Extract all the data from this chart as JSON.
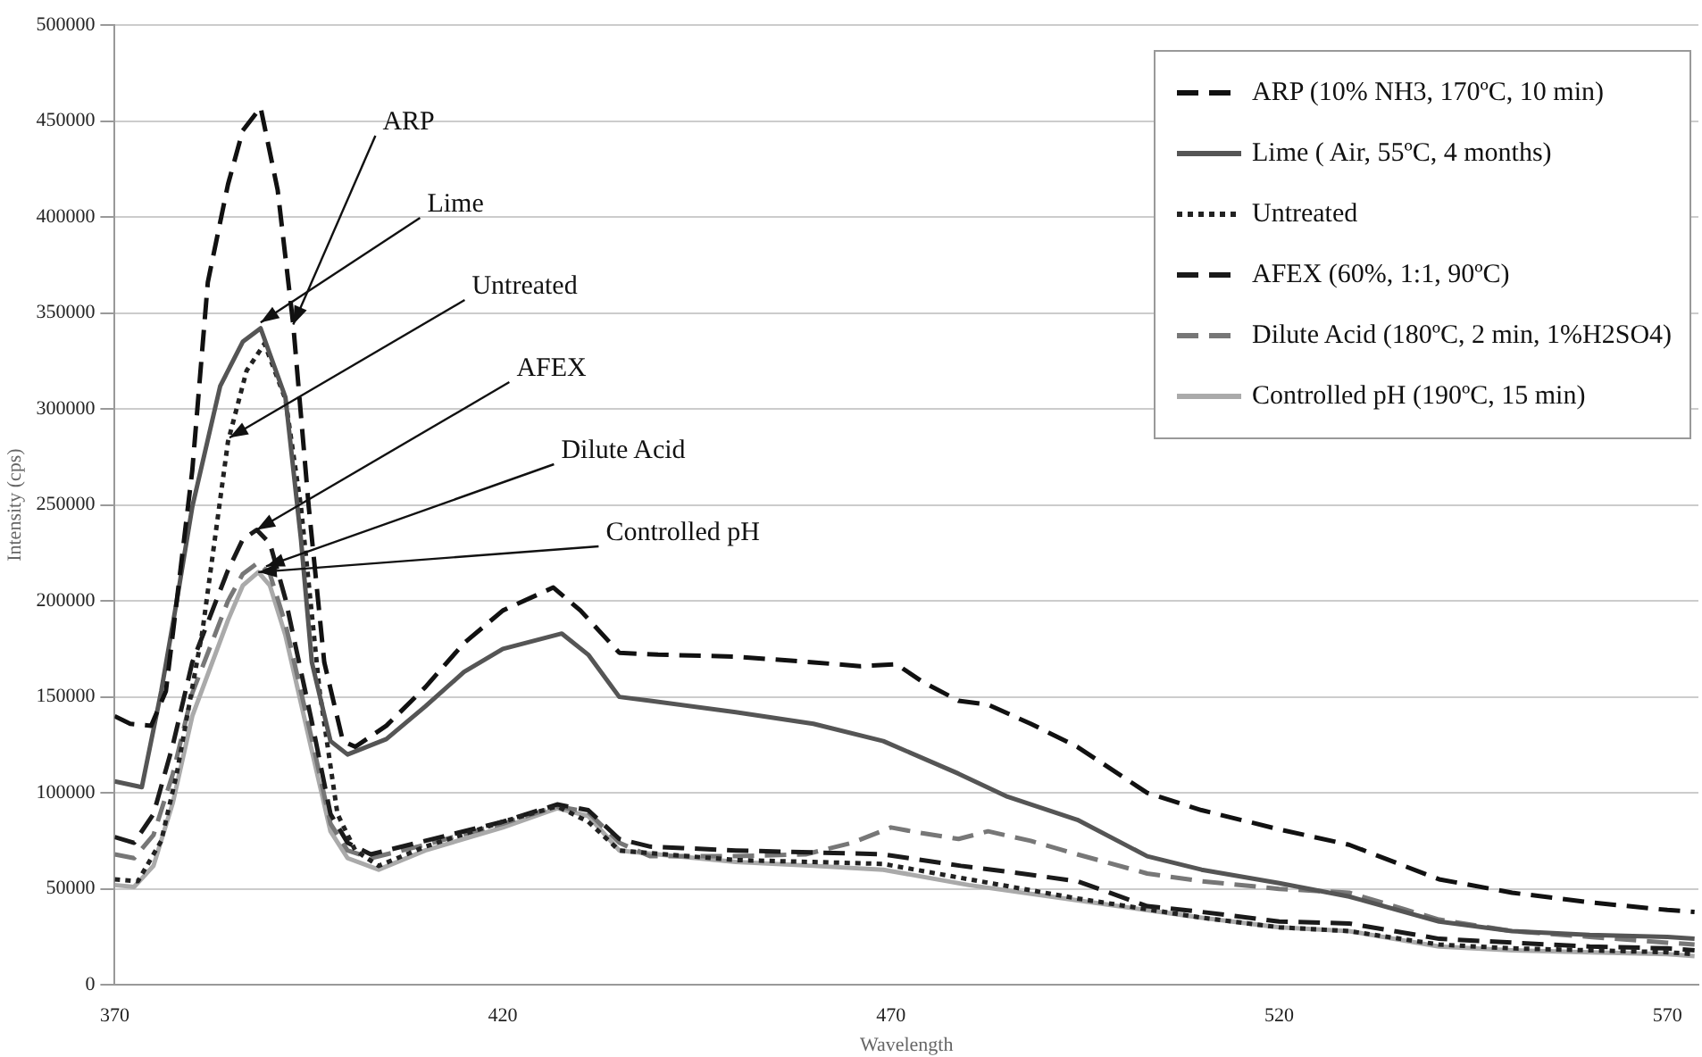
{
  "chart_data": {
    "type": "line",
    "xlabel": "Wavelength",
    "ylabel": "Intensity (cps)",
    "xlim": [
      370,
      574
    ],
    "xticks": [
      370,
      420,
      470,
      520,
      570
    ],
    "ylim": [
      0,
      500000
    ],
    "yticks": [
      0,
      50000,
      100000,
      150000,
      200000,
      250000,
      300000,
      350000,
      400000,
      450000,
      500000
    ],
    "grid": "y",
    "legend": "top right",
    "marker": "none",
    "series": [
      {
        "name": "ARP (10% NH3, 170ºC, 10 min)",
        "color": "#111111",
        "line_style": "dashed",
        "x": [
          370,
          372,
          374.7,
          376.6,
          378,
          380,
          382,
          384.6,
          386.5,
          388.8,
          391,
          393,
          395,
          397,
          399.4,
          401,
          405,
          410,
          415,
          420,
          426.5,
          430,
          435,
          440,
          450,
          460,
          466,
          470.7,
          474,
          478.7,
          482.5,
          488,
          494,
          503,
          510,
          520,
          529,
          540.6,
          550,
          560,
          570,
          573.5
        ],
        "values": [
          140000,
          136000,
          135000,
          153000,
          200000,
          268000,
          366000,
          417000,
          445000,
          457000,
          414000,
          344000,
          249000,
          168000,
          127000,
          124000,
          135000,
          155000,
          178000,
          195000,
          207000,
          195000,
          173000,
          172000,
          171000,
          168000,
          166000,
          167000,
          158000,
          148000,
          146000,
          136000,
          124000,
          100000,
          91000,
          81000,
          73000,
          55000,
          48000,
          43000,
          39000,
          38000
        ]
      },
      {
        "name": "Lime ( Air, 55ºC, 4 months)",
        "color": "#555555",
        "line_style": "solid",
        "x": [
          370,
          373.5,
          376,
          378,
          380,
          383.6,
          386.5,
          388.8,
          392,
          394,
          395.4,
          397.8,
          400,
          405,
          410,
          415,
          420,
          427.6,
          431,
          435,
          439,
          450,
          460,
          469,
          478.7,
          485,
          494,
          503,
          510,
          520,
          529,
          540.6,
          550,
          560,
          570,
          573.5
        ],
        "values": [
          106000,
          103000,
          153000,
          200000,
          249000,
          312000,
          335000,
          342000,
          306000,
          232000,
          168000,
          127000,
          120000,
          128000,
          145000,
          163000,
          175000,
          183000,
          172000,
          150000,
          148000,
          142000,
          136000,
          127000,
          110000,
          98000,
          86000,
          67000,
          60000,
          53000,
          46000,
          33000,
          28000,
          26000,
          25000,
          24000
        ]
      },
      {
        "name": "Untreated",
        "color": "#222222",
        "line_style": "dotted",
        "x": [
          370,
          373,
          376,
          378,
          381.3,
          384.6,
          387,
          389.3,
          392,
          394,
          396.4,
          398.7,
          401,
          404,
          410,
          420,
          427,
          431,
          435,
          450,
          460,
          469,
          480,
          494,
          510,
          520,
          529,
          540.6,
          550,
          560,
          570,
          573.5
        ],
        "values": [
          55000,
          54000,
          75000,
          110000,
          184000,
          283000,
          320000,
          334000,
          305000,
          249000,
          153000,
          89000,
          70000,
          62000,
          72000,
          85000,
          93000,
          85000,
          70000,
          65000,
          64000,
          63000,
          55000,
          45000,
          35000,
          30000,
          28000,
          21000,
          19000,
          18000,
          17000,
          16000
        ]
      },
      {
        "name": "AFEX (60%, 1:1, 90ºC)",
        "color": "#1a1a1a",
        "line_style": "dashed",
        "x": [
          370,
          372.5,
          375,
          377.5,
          380,
          384.6,
          386.5,
          388.3,
          390,
          392,
          395.4,
          397.8,
          400,
          403,
          410,
          420,
          427,
          431,
          435,
          439,
          450,
          460,
          469,
          479,
          485,
          494,
          503,
          510,
          520,
          529,
          540.6,
          550,
          560,
          570,
          573.5
        ],
        "values": [
          77000,
          74000,
          89000,
          125000,
          168000,
          216000,
          232000,
          237000,
          230000,
          201000,
          137000,
          89000,
          74000,
          68000,
          75000,
          85000,
          94000,
          91000,
          76000,
          72000,
          70000,
          69000,
          68000,
          62000,
          59000,
          54000,
          41000,
          38000,
          33000,
          32000,
          24000,
          22000,
          20000,
          19000,
          18000
        ]
      },
      {
        "name": "Dilute Acid (180ºC, 2 min, 1%H2SO4)",
        "color": "#777777",
        "line_style": "dashed",
        "x": [
          370,
          372.5,
          375,
          377.5,
          380,
          384.6,
          386.5,
          388.5,
          390,
          392,
          395.4,
          397.8,
          400,
          403,
          410,
          420,
          427,
          431,
          435,
          439,
          450,
          459,
          465,
          470,
          474,
          478.7,
          482.5,
          488,
          494,
          503,
          510,
          520,
          529,
          540.6,
          550,
          560,
          570,
          573.5
        ],
        "values": [
          68000,
          66000,
          78000,
          110000,
          152000,
          200000,
          214000,
          220000,
          214000,
          188000,
          128000,
          84000,
          70000,
          66000,
          73000,
          84000,
          93000,
          90000,
          74000,
          67000,
          67000,
          68000,
          74000,
          82000,
          79000,
          76000,
          80000,
          75000,
          68000,
          58000,
          54000,
          50000,
          48000,
          34000,
          28000,
          25000,
          22000,
          21000
        ]
      },
      {
        "name": "Controlled pH (190ºC, 15 min)",
        "color": "#aaaaaa",
        "line_style": "solid",
        "x": [
          370,
          372.5,
          375,
          377.5,
          380,
          384.6,
          386.5,
          388.5,
          390,
          392,
          395.4,
          397.8,
          400,
          404,
          410,
          420,
          427,
          431,
          435,
          450,
          460,
          469,
          480,
          494,
          510,
          520,
          529,
          540.6,
          550,
          560,
          570,
          573.5
        ],
        "values": [
          52000,
          51000,
          62000,
          95000,
          140000,
          190000,
          208000,
          215000,
          208000,
          182000,
          122000,
          80000,
          66000,
          60000,
          70000,
          82000,
          92000,
          88000,
          70000,
          64000,
          62000,
          60000,
          52000,
          44000,
          35000,
          30000,
          28000,
          20000,
          18000,
          17000,
          16000,
          15000
        ]
      }
    ],
    "annotations": [
      {
        "text": "ARP",
        "x": 393,
        "y": 344000
      },
      {
        "text": "Lime",
        "x": 388.8,
        "y": 345000
      },
      {
        "text": "Untreated",
        "x": 384.8,
        "y": 285000
      },
      {
        "text": "AFEX",
        "x": 388.3,
        "y": 237000
      },
      {
        "text": "Dilute Acid",
        "x": 389.5,
        "y": 218000
      },
      {
        "text": "Controlled pH",
        "x": 388.5,
        "y": 215000
      }
    ]
  }
}
